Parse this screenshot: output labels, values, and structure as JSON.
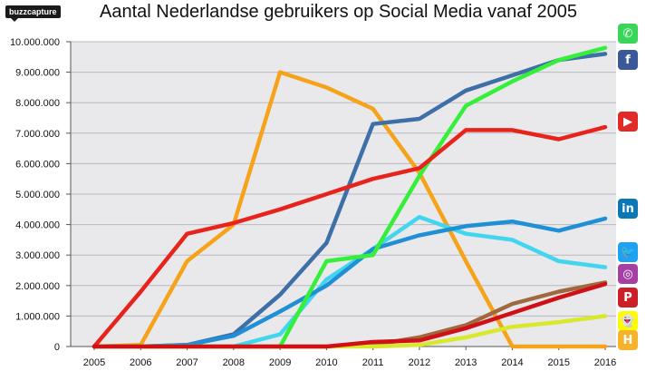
{
  "brand": "buzzcapture",
  "chart_data": {
    "type": "line",
    "title": "Aantal Nederlandse gebruikers op Social Media vanaf 2005",
    "x": [
      "2005",
      "2006",
      "2007",
      "2008",
      "2009",
      "2010",
      "2011",
      "2012",
      "2013",
      "2014",
      "2015",
      "2016"
    ],
    "ylim": [
      0,
      10000000
    ],
    "yticks": [
      "0",
      "1.000.000",
      "2.000.000",
      "3.000.000",
      "4.000.000",
      "5.000.000",
      "6.000.000",
      "7.000.000",
      "8.000.000",
      "9.000.000",
      "10.000.000"
    ],
    "grid": true,
    "legend": "icons at right end of lines",
    "series": [
      {
        "color": "#f5a31a",
        "values": [
          0,
          50000,
          2800000,
          4000000,
          9000000,
          8500000,
          7800000,
          5700000,
          2800000,
          0,
          0,
          0
        ]
      },
      {
        "color": "#42d5ef",
        "values": [
          0,
          0,
          0,
          0,
          400000,
          2200000,
          3200000,
          4250000,
          3700000,
          3500000,
          2800000,
          2600000
        ]
      },
      {
        "color": "#3e6fa6",
        "values": [
          0,
          0,
          50000,
          400000,
          1700000,
          3400000,
          7300000,
          7470000,
          8400000,
          8900000,
          9400000,
          9600000
        ]
      },
      {
        "color": "#1f8fd6",
        "values": [
          0,
          0,
          50000,
          350000,
          1150000,
          2000000,
          3200000,
          3650000,
          3950000,
          4100000,
          3800000,
          4200000
        ]
      },
      {
        "color": "#a0683e",
        "values": [
          0,
          0,
          0,
          0,
          0,
          0,
          50000,
          300000,
          700000,
          1400000,
          1800000,
          2100000
        ]
      },
      {
        "color": "#d8e92d",
        "values": [
          0,
          0,
          0,
          0,
          0,
          0,
          0,
          50000,
          300000,
          650000,
          800000,
          1000000
        ]
      },
      {
        "color": "#35ef3a",
        "values": [
          0,
          0,
          0,
          0,
          0,
          2800000,
          3000000,
          5600000,
          7900000,
          8700000,
          9400000,
          9800000
        ]
      },
      {
        "color": "#e8231c",
        "values": [
          0,
          1800000,
          3700000,
          4050000,
          4500000,
          5000000,
          5500000,
          5850000,
          7100000,
          7100000,
          6800000,
          7200000
        ]
      },
      {
        "color": "#d10f16",
        "values": [
          0,
          0,
          0,
          0,
          0,
          0,
          150000,
          200000,
          600000,
          1100000,
          1600000,
          2050000
        ]
      }
    ]
  },
  "icons": [
    {
      "name": "whatsapp-icon",
      "glyph": "✆",
      "color": "#39d65a"
    },
    {
      "name": "facebook-icon",
      "glyph": "f",
      "color": "#3b5998"
    },
    {
      "name": "youtube-icon",
      "glyph": "▶",
      "color": "#e22b26"
    },
    {
      "name": "linkedin-icon",
      "glyph": "in",
      "color": "#0b78b6"
    },
    {
      "name": "twitter-icon",
      "glyph": "🐦",
      "color": "#1da1f2"
    },
    {
      "name": "instagram-icon",
      "glyph": "◎",
      "color": "#a63fa4"
    },
    {
      "name": "pinterest-icon",
      "glyph": "P",
      "color": "#cb2027"
    },
    {
      "name": "snapchat-icon",
      "glyph": "👻",
      "color": "#fffc00"
    },
    {
      "name": "hyves-icon",
      "glyph": "H",
      "color": "#f6b22a"
    }
  ]
}
